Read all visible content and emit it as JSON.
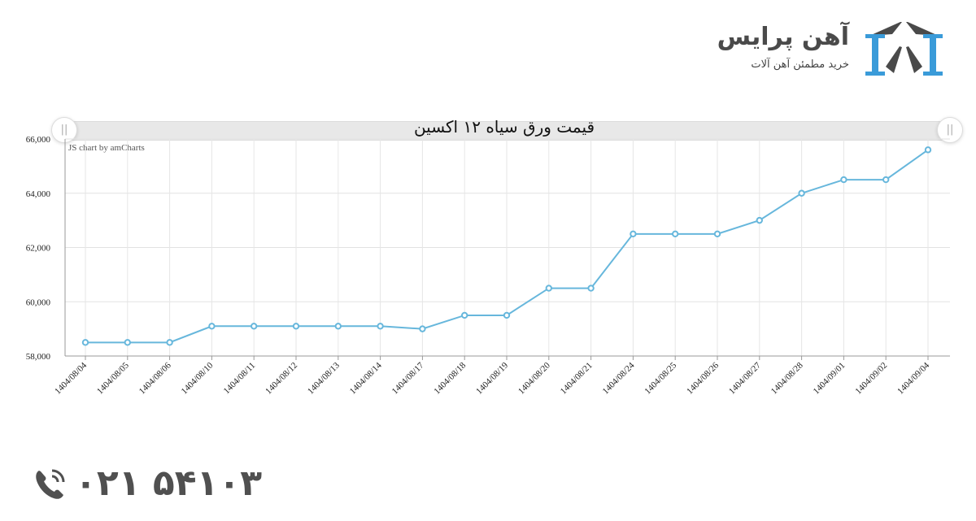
{
  "brand": {
    "name": "آهن پرایس",
    "tagline": "خرید مطمئن آهن آلات",
    "colors": {
      "blue": "#3a9bd9",
      "dark": "#4a4a4a"
    },
    "logo_icon": "steel-beam-arch-logo-icon"
  },
  "chart_header": {
    "title": "قیمت ورق سیاه ۱۲ اکسین",
    "credit": "JS chart by amCharts",
    "left_grip_icon": "scroll-grip-icon",
    "right_grip_icon": "scroll-grip-icon",
    "grip_glyph": "||"
  },
  "contact": {
    "phone_icon": "phone-ringing-icon",
    "phone": "۰۲۱ ۵۴۱۰۳"
  },
  "chart_data": {
    "type": "line",
    "title": "قیمت ورق سیاه ۱۲ اکسین",
    "xlabel": "",
    "ylabel": "",
    "ylim": [
      58000,
      66000
    ],
    "yticks": [
      "58,000",
      "60,000",
      "62,000",
      "64,000",
      "66,000"
    ],
    "grid": true,
    "legend": "none",
    "line_color": "#67b7dc",
    "categories": [
      "1404/08/04",
      "1404/08/05",
      "1404/08/06",
      "1404/08/10",
      "1404/08/11",
      "1404/08/12",
      "1404/08/13",
      "1404/08/14",
      "1404/08/17",
      "1404/08/18",
      "1404/08/19",
      "1404/08/20",
      "1404/08/21",
      "1404/08/24",
      "1404/08/25",
      "1404/08/26",
      "1404/08/27",
      "1404/08/28",
      "1404/09/01",
      "1404/09/02",
      "1404/09/04"
    ],
    "values": [
      58500,
      58500,
      58500,
      59100,
      59100,
      59100,
      59100,
      59100,
      59000,
      59500,
      59500,
      60500,
      60500,
      62500,
      62500,
      62500,
      63000,
      64000,
      64500,
      64500,
      65600
    ]
  }
}
